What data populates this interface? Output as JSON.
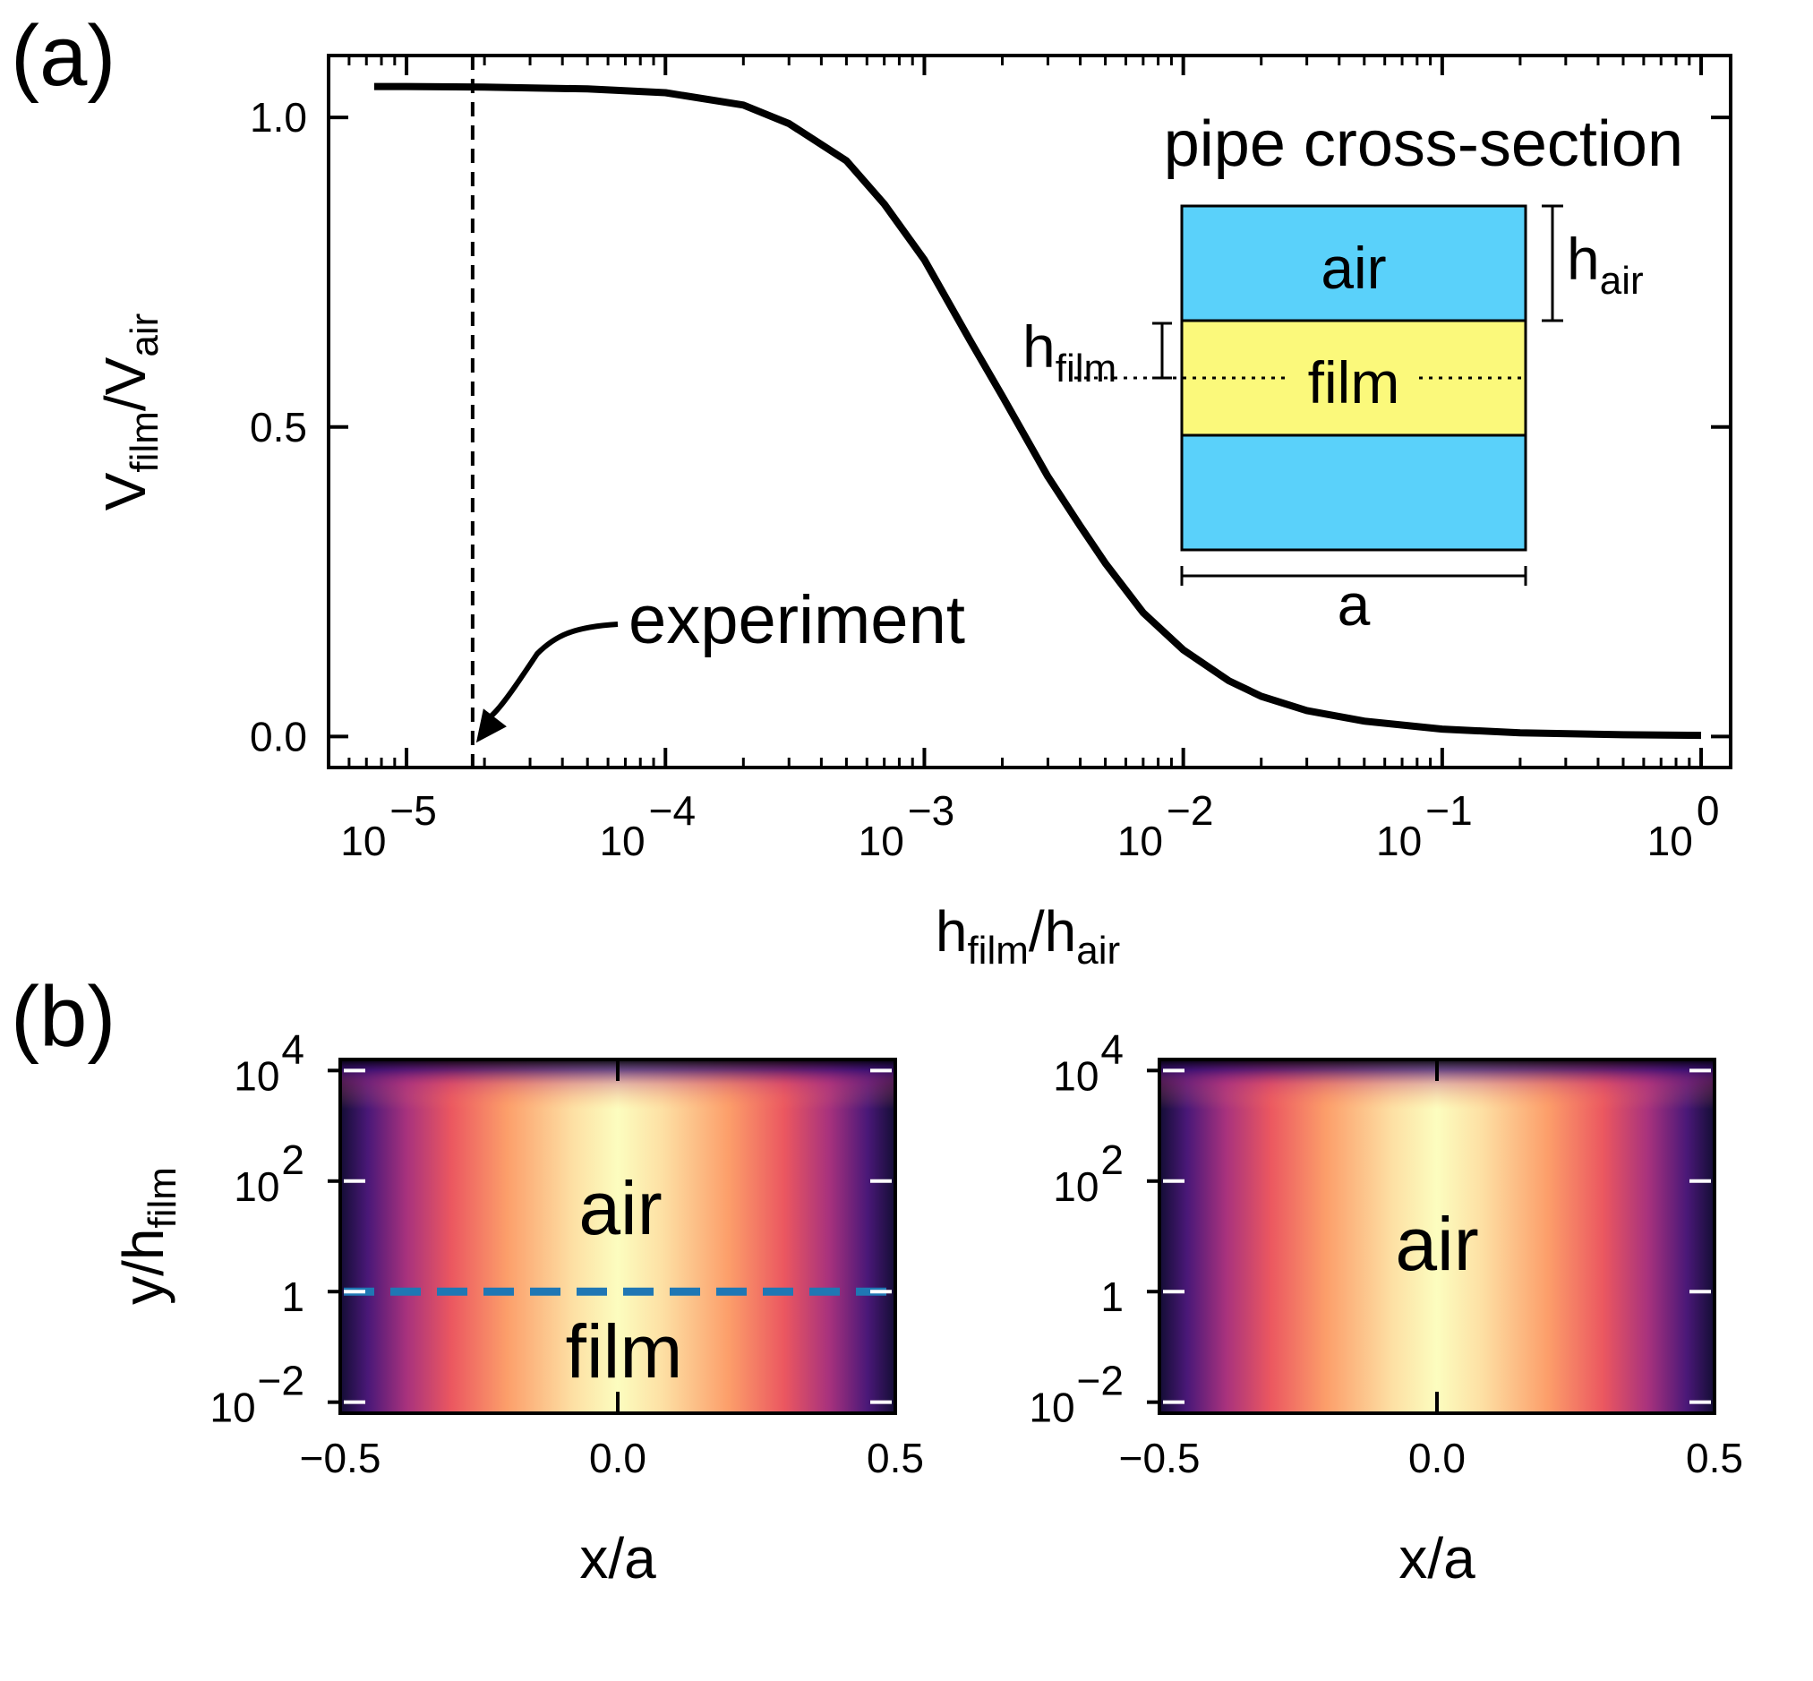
{
  "panel_labels": {
    "a": "(a)",
    "b": "(b)"
  },
  "chart_data": [
    {
      "type": "line",
      "panel": "(a)",
      "xscale": "log",
      "xlim": [
        5e-06,
        1.3
      ],
      "ylim": [
        -0.05,
        1.1
      ],
      "xticks": [
        1e-05,
        0.0001,
        0.001,
        0.01,
        0.1,
        1
      ],
      "xtick_labels": [
        {
          "base": "10",
          "exp": "−5"
        },
        {
          "base": "10",
          "exp": "−4"
        },
        {
          "base": "10",
          "exp": "−3"
        },
        {
          "base": "10",
          "exp": "−2"
        },
        {
          "base": "10",
          "exp": "−1"
        },
        {
          "base": "10",
          "exp": "0"
        }
      ],
      "yticks": [
        "0.0",
        "0.5",
        "1.0"
      ],
      "xlabel": {
        "main": "h",
        "sub1": "film",
        "sep": "/h",
        "sub2": "air"
      },
      "ylabel": {
        "main": "V",
        "sub1": "film",
        "sep": "/V",
        "sub2": "air"
      },
      "x": [
        7.5e-06,
        1e-05,
        2e-05,
        5e-05,
        0.0001,
        0.0002,
        0.0003,
        0.0005,
        0.0007,
        0.001,
        0.0015,
        0.002,
        0.003,
        0.004,
        0.005,
        0.007,
        0.01,
        0.015,
        0.02,
        0.03,
        0.05,
        0.1,
        0.2,
        0.5,
        1
      ],
      "y": [
        1.05,
        1.05,
        1.049,
        1.046,
        1.04,
        1.02,
        0.99,
        0.93,
        0.86,
        0.77,
        0.64,
        0.55,
        0.42,
        0.34,
        0.28,
        0.2,
        0.14,
        0.09,
        0.065,
        0.042,
        0.025,
        0.012,
        0.006,
        0.003,
        0.002
      ],
      "vline_x": 1.8e-05,
      "annotation": {
        "text": "experiment",
        "x": 1.8e-05,
        "y": -0.01
      },
      "inset": {
        "title": "pipe cross-section",
        "layer_top": "air",
        "layer_middle": "film",
        "dim_air": {
          "main": "h",
          "sub": "air"
        },
        "dim_film": {
          "main": "h",
          "sub": "film"
        },
        "width_label": "a",
        "colors": {
          "air": "#5ad1fa",
          "film": "#fbf97b"
        }
      }
    },
    {
      "type": "heatmap",
      "panel": "(b) left",
      "colormap": "magma",
      "xlim": [
        -0.5,
        0.5
      ],
      "ylim_log10": [
        -2.2,
        4.2
      ],
      "xticks": [
        "−0.5",
        "0.0",
        "0.5"
      ],
      "yticks": [
        {
          "base": "10",
          "exp": "4",
          "at": 4
        },
        {
          "base": "10",
          "exp": "2",
          "at": 2
        },
        {
          "base": "1",
          "exp": "",
          "at": 0
        },
        {
          "base": "10",
          "exp": "−2",
          "at": -2
        }
      ],
      "xlabel": "x/a",
      "ylabel": {
        "main": "y/h",
        "sub": "film"
      },
      "region_labels": {
        "top": "air",
        "bottom": "film"
      },
      "interface_line": {
        "y_log10": 0,
        "color": "#1f77b4"
      }
    },
    {
      "type": "heatmap",
      "panel": "(b) right",
      "colormap": "magma",
      "xlim": [
        -0.5,
        0.5
      ],
      "ylim_log10": [
        -2.2,
        4.2
      ],
      "xticks": [
        "−0.5",
        "0.0",
        "0.5"
      ],
      "yticks": [
        {
          "base": "10",
          "exp": "4",
          "at": 4
        },
        {
          "base": "10",
          "exp": "2",
          "at": 2
        },
        {
          "base": "1",
          "exp": "",
          "at": 0
        },
        {
          "base": "10",
          "exp": "−2",
          "at": -2
        }
      ],
      "xlabel": "x/a",
      "region_labels": {
        "top": "air"
      }
    }
  ]
}
